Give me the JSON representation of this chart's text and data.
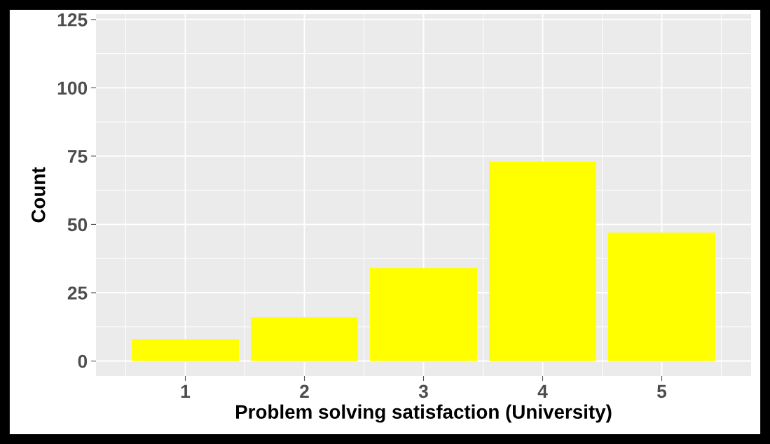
{
  "chart_data": {
    "type": "bar",
    "xlabel": "Problem solving satisfaction (University)",
    "ylabel": "Count",
    "categories": [
      "1",
      "2",
      "3",
      "4",
      "5"
    ],
    "values": [
      8,
      16,
      34,
      73,
      47
    ],
    "color": "#ffff00",
    "ylim": [
      -5.5,
      127
    ],
    "yticks": [
      0,
      25,
      50,
      75,
      100,
      125
    ],
    "grid": true
  }
}
